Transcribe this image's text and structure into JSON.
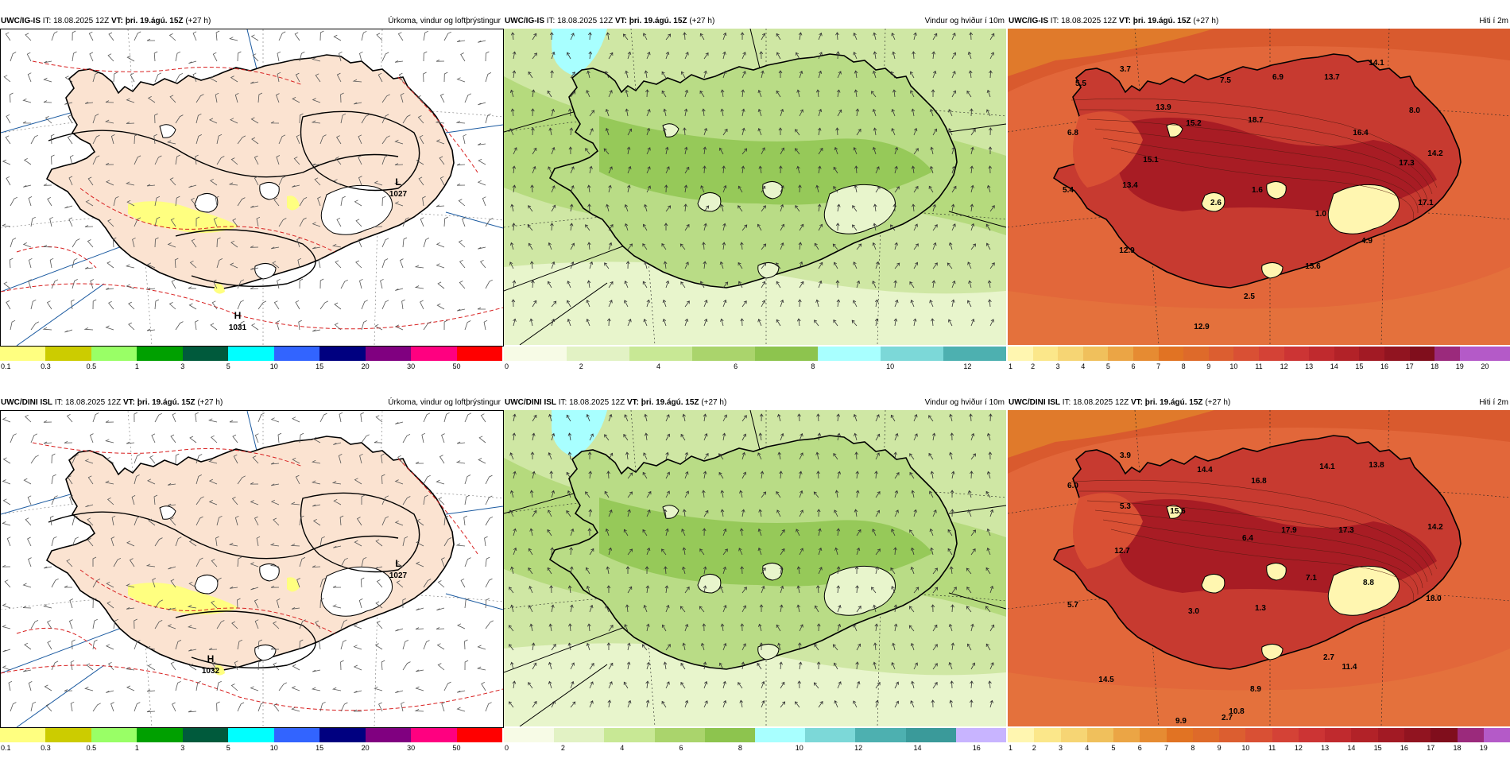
{
  "rows": [
    {
      "model": "UWC/IG-IS",
      "precip": {
        "it": " IT: 18.08.2025 12Z ",
        "vt": "VT: þri. 19.ágú. 15Z",
        "lead": " (+27 h)",
        "param": "Úrkoma, vindur og loftþrýstingur",
        "highs_lows": [
          {
            "letter": "L",
            "value": "1027"
          },
          {
            "letter": "H",
            "value": "1031"
          }
        ],
        "colorbar_labels": [
          "0.1",
          "0.3",
          "0.5",
          "1",
          "3",
          "5",
          "10",
          "15",
          "20",
          "30",
          "50"
        ]
      },
      "wind": {
        "it": " IT: 18.08.2025 12Z ",
        "vt": "VT: þri. 19.ágú. 15Z",
        "lead": " (+27 h)",
        "param": "Vindur og hviður í 10m",
        "colorbar_labels": [
          "0",
          "2",
          "4",
          "6",
          "8",
          "10",
          "12"
        ]
      },
      "temp": {
        "it": " IT: 18.08.2025 12Z ",
        "vt": "VT: þri. 19.ágú. 15Z",
        "lead": " (+27 h)",
        "param": "Hiti í 2m",
        "labels": [
          "3.7",
          "7.5",
          "6.9",
          "13.7",
          "14.1",
          "5.5",
          "13.9",
          "15.2",
          "18.7",
          "8.0",
          "6.8",
          "16.4",
          "14.2",
          "15.1",
          "17.3",
          "5.4",
          "13.4",
          "2.6",
          "1.6",
          "17.1",
          "1.0",
          "4.9",
          "12.9",
          "15.6",
          "2.5",
          "12.9"
        ],
        "colorbar_labels": [
          "1",
          "2",
          "3",
          "4",
          "5",
          "6",
          "7",
          "8",
          "9",
          "10",
          "11",
          "12",
          "13",
          "14",
          "15",
          "16",
          "17",
          "18",
          "19",
          "20"
        ]
      }
    },
    {
      "model": "UWC/DINI ISL",
      "precip": {
        "it": " IT: 18.08.2025 12Z ",
        "vt": "VT: þri. 19.ágú. 15Z",
        "lead": " (+27 h)",
        "param": "Úrkoma, vindur og loftþrýstingur",
        "highs_lows": [
          {
            "letter": "L",
            "value": "1027"
          },
          {
            "letter": "H",
            "value": "1032"
          }
        ],
        "colorbar_labels": [
          "0.1",
          "0.3",
          "0.5",
          "1",
          "3",
          "5",
          "10",
          "15",
          "20",
          "30",
          "50"
        ]
      },
      "wind": {
        "it": " IT: 18.08.2025 12Z ",
        "vt": "VT: þri. 19.ágú. 15Z",
        "lead": " (+27 h)",
        "param": "Vindur og hviður í 10m",
        "colorbar_labels": [
          "0",
          "2",
          "4",
          "6",
          "8",
          "10",
          "12",
          "14",
          "16"
        ]
      },
      "temp": {
        "it": " IT: 18.08.2025 12Z ",
        "vt": "VT: þri. 19.ágú. 15Z",
        "lead": " (+27 h)",
        "param": "Hiti í 2m",
        "labels": [
          "3.9",
          "14.4",
          "14.1",
          "13.8",
          "6.0",
          "16.8",
          "5.3",
          "15.6",
          "17.9",
          "17.3",
          "14.2",
          "12.7",
          "6.4",
          "7.1",
          "5.7",
          "3.0",
          "1.3",
          "8.8",
          "18.0",
          "2.7",
          "11.4",
          "14.5",
          "8.9",
          "10.8",
          "2.7",
          "9.9"
        ],
        "colorbar_labels": [
          "1",
          "2",
          "3",
          "4",
          "5",
          "6",
          "7",
          "8",
          "9",
          "10",
          "11",
          "12",
          "13",
          "14",
          "15",
          "16",
          "17",
          "18",
          "19"
        ]
      }
    }
  ],
  "colors": {
    "precip_scale": [
      "#ffff80",
      "#cccc00",
      "#99ff66",
      "#00a000",
      "#005a3c",
      "#00ffff",
      "#3264ff",
      "#000080",
      "#800080",
      "#ff0080",
      "#ff0000"
    ],
    "wind_scale_row0": [
      "#f7fbe6",
      "#e2f2c4",
      "#c8e895",
      "#aad46c",
      "#8dc44e",
      "#a8ffff",
      "#7cd8d8",
      "#4db0b0"
    ],
    "wind_scale_row1": [
      "#f7fbe6",
      "#e2f2c4",
      "#c8e895",
      "#aad46c",
      "#8dc44e",
      "#a8ffff",
      "#7cd8d8",
      "#4db0b0",
      "#3a9a9a",
      "#c8b4ff"
    ],
    "temp_scale": [
      "#fff6b0",
      "#fbe78a",
      "#f6d574",
      "#f0c05c",
      "#eba545",
      "#e68b32",
      "#e17323",
      "#de6a2a",
      "#dc5e30",
      "#d95034",
      "#d44236",
      "#cc3434",
      "#c02a2e",
      "#b22228",
      "#a21a24",
      "#911420",
      "#800e1c",
      "#9b2a7c",
      "#b45ac8"
    ],
    "land": "#fbe3d1",
    "sea_white": "#ffffff"
  }
}
